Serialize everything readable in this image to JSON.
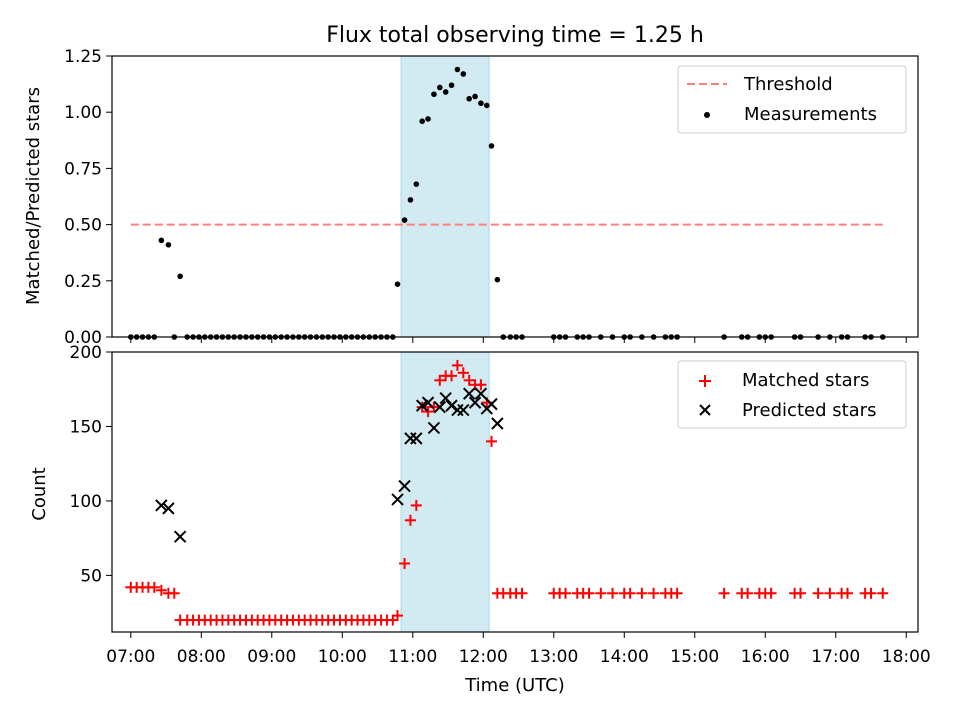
{
  "figure_title": "Flux total observing time = 1.25 h",
  "chart_data": [
    {
      "type": "scatter",
      "ylabel": "Matched/Predicted stars",
      "xlim": [
        "06:44",
        "18:10"
      ],
      "ylim": [
        0,
        1.25
      ],
      "yticks": [
        "0.00",
        "0.25",
        "0.50",
        "0.75",
        "1.00",
        "1.25"
      ],
      "highlight": {
        "from": "10:50",
        "to": "12:05",
        "color": "#add8e6"
      },
      "legend": [
        "Threshold",
        "Measurements"
      ],
      "legend_position": "top-right",
      "series": [
        {
          "name": "Threshold",
          "style": "dashed-line",
          "color": "#ff7f7f",
          "points": [
            [
              "07:00",
              0.5
            ],
            [
              "17:40",
              0.5
            ]
          ]
        },
        {
          "name": "Measurements",
          "style": "dot",
          "color": "#000000",
          "points": [
            [
              "07:00",
              0
            ],
            [
              "07:05",
              0
            ],
            [
              "07:10",
              0
            ],
            [
              "07:15",
              0
            ],
            [
              "07:20",
              0
            ],
            [
              "07:26",
              0.43
            ],
            [
              "07:32",
              0.41
            ],
            [
              "07:37",
              0
            ],
            [
              "07:42",
              0.27
            ],
            [
              "07:48",
              0
            ],
            [
              "07:53",
              0
            ],
            [
              "07:58",
              0
            ],
            [
              "08:03",
              0
            ],
            [
              "08:08",
              0
            ],
            [
              "08:13",
              0
            ],
            [
              "08:18",
              0
            ],
            [
              "08:23",
              0
            ],
            [
              "08:28",
              0
            ],
            [
              "08:33",
              0
            ],
            [
              "08:38",
              0
            ],
            [
              "08:43",
              0
            ],
            [
              "08:48",
              0
            ],
            [
              "08:53",
              0
            ],
            [
              "08:58",
              0
            ],
            [
              "09:03",
              0
            ],
            [
              "09:08",
              0
            ],
            [
              "09:13",
              0
            ],
            [
              "09:18",
              0
            ],
            [
              "09:23",
              0
            ],
            [
              "09:28",
              0
            ],
            [
              "09:33",
              0
            ],
            [
              "09:38",
              0
            ],
            [
              "09:43",
              0
            ],
            [
              "09:48",
              0
            ],
            [
              "09:53",
              0
            ],
            [
              "09:58",
              0
            ],
            [
              "10:03",
              0
            ],
            [
              "10:08",
              0
            ],
            [
              "10:13",
              0
            ],
            [
              "10:18",
              0
            ],
            [
              "10:23",
              0
            ],
            [
              "10:28",
              0
            ],
            [
              "10:33",
              0
            ],
            [
              "10:38",
              0
            ],
            [
              "10:43",
              0
            ],
            [
              "10:47",
              0.235
            ],
            [
              "10:53",
              0.52
            ],
            [
              "10:58",
              0.61
            ],
            [
              "11:03",
              0.68
            ],
            [
              "11:08",
              0.96
            ],
            [
              "11:13",
              0.97
            ],
            [
              "11:18",
              1.08
            ],
            [
              "11:23",
              1.11
            ],
            [
              "11:28",
              1.09
            ],
            [
              "11:33",
              1.12
            ],
            [
              "11:38",
              1.19
            ],
            [
              "11:43",
              1.17
            ],
            [
              "11:48",
              1.06
            ],
            [
              "11:53",
              1.07
            ],
            [
              "11:58",
              1.04
            ],
            [
              "12:03",
              1.03
            ],
            [
              "12:07",
              0.85
            ],
            [
              "12:12",
              0.255
            ],
            [
              "12:17",
              0
            ],
            [
              "12:23",
              0
            ],
            [
              "12:28",
              0
            ],
            [
              "12:33",
              0
            ],
            [
              "13:00",
              0
            ],
            [
              "13:05",
              0
            ],
            [
              "13:10",
              0
            ],
            [
              "13:20",
              0
            ],
            [
              "13:25",
              0
            ],
            [
              "13:30",
              0
            ],
            [
              "13:40",
              0
            ],
            [
              "13:50",
              0
            ],
            [
              "14:00",
              0
            ],
            [
              "14:05",
              0
            ],
            [
              "14:15",
              0
            ],
            [
              "14:25",
              0
            ],
            [
              "14:35",
              0
            ],
            [
              "14:40",
              0
            ],
            [
              "14:45",
              0
            ],
            [
              "15:25",
              0
            ],
            [
              "15:40",
              0
            ],
            [
              "15:45",
              0
            ],
            [
              "15:55",
              0
            ],
            [
              "16:00",
              0
            ],
            [
              "16:05",
              0
            ],
            [
              "16:25",
              0
            ],
            [
              "16:30",
              0
            ],
            [
              "16:45",
              0
            ],
            [
              "16:55",
              0
            ],
            [
              "17:05",
              0
            ],
            [
              "17:10",
              0
            ],
            [
              "17:25",
              0
            ],
            [
              "17:30",
              0
            ],
            [
              "17:40",
              0
            ]
          ]
        }
      ]
    },
    {
      "type": "scatter",
      "ylabel": "Count",
      "xlabel": "Time (UTC)",
      "xlim": [
        "06:44",
        "18:10"
      ],
      "ylim": [
        12,
        200
      ],
      "yticks": [
        "50",
        "100",
        "150",
        "200"
      ],
      "xticks": [
        "07:00",
        "08:00",
        "09:00",
        "10:00",
        "11:00",
        "12:00",
        "13:00",
        "14:00",
        "15:00",
        "16:00",
        "17:00",
        "18:00"
      ],
      "highlight": {
        "from": "10:50",
        "to": "12:05",
        "color": "#add8e6"
      },
      "legend": [
        "Matched stars",
        "Predicted stars"
      ],
      "legend_position": "top-right",
      "series": [
        {
          "name": "Matched stars",
          "marker": "plus",
          "color": "#ff0000",
          "points": [
            [
              "07:00",
              42
            ],
            [
              "07:05",
              42
            ],
            [
              "07:10",
              42
            ],
            [
              "07:15",
              42
            ],
            [
              "07:20",
              42
            ],
            [
              "07:26",
              40
            ],
            [
              "07:32",
              38
            ],
            [
              "07:37",
              38
            ],
            [
              "07:42",
              20
            ],
            [
              "07:48",
              20
            ],
            [
              "07:53",
              20
            ],
            [
              "07:58",
              20
            ],
            [
              "08:03",
              20
            ],
            [
              "08:08",
              20
            ],
            [
              "08:13",
              20
            ],
            [
              "08:18",
              20
            ],
            [
              "08:23",
              20
            ],
            [
              "08:28",
              20
            ],
            [
              "08:33",
              20
            ],
            [
              "08:38",
              20
            ],
            [
              "08:43",
              20
            ],
            [
              "08:48",
              20
            ],
            [
              "08:53",
              20
            ],
            [
              "08:58",
              20
            ],
            [
              "09:03",
              20
            ],
            [
              "09:08",
              20
            ],
            [
              "09:13",
              20
            ],
            [
              "09:18",
              20
            ],
            [
              "09:23",
              20
            ],
            [
              "09:28",
              20
            ],
            [
              "09:33",
              20
            ],
            [
              "09:38",
              20
            ],
            [
              "09:43",
              20
            ],
            [
              "09:48",
              20
            ],
            [
              "09:53",
              20
            ],
            [
              "09:58",
              20
            ],
            [
              "10:03",
              20
            ],
            [
              "10:08",
              20
            ],
            [
              "10:13",
              20
            ],
            [
              "10:18",
              20
            ],
            [
              "10:23",
              20
            ],
            [
              "10:28",
              20
            ],
            [
              "10:33",
              20
            ],
            [
              "10:38",
              20
            ],
            [
              "10:43",
              20
            ],
            [
              "10:47",
              23
            ],
            [
              "10:53",
              58
            ],
            [
              "10:58",
              87
            ],
            [
              "11:03",
              97
            ],
            [
              "11:08",
              163
            ],
            [
              "11:13",
              160
            ],
            [
              "11:18",
              163
            ],
            [
              "11:23",
              181
            ],
            [
              "11:28",
              184
            ],
            [
              "11:33",
              184
            ],
            [
              "11:38",
              191
            ],
            [
              "11:43",
              186
            ],
            [
              "11:48",
              181
            ],
            [
              "11:53",
              178
            ],
            [
              "11:58",
              178
            ],
            [
              "12:03",
              166
            ],
            [
              "12:07",
              140
            ],
            [
              "12:12",
              38
            ],
            [
              "12:17",
              38
            ],
            [
              "12:23",
              38
            ],
            [
              "12:28",
              38
            ],
            [
              "12:33",
              38
            ],
            [
              "13:00",
              38
            ],
            [
              "13:05",
              38
            ],
            [
              "13:10",
              38
            ],
            [
              "13:20",
              38
            ],
            [
              "13:25",
              38
            ],
            [
              "13:30",
              38
            ],
            [
              "13:40",
              38
            ],
            [
              "13:50",
              38
            ],
            [
              "14:00",
              38
            ],
            [
              "14:05",
              38
            ],
            [
              "14:15",
              38
            ],
            [
              "14:25",
              38
            ],
            [
              "14:35",
              38
            ],
            [
              "14:40",
              38
            ],
            [
              "14:45",
              38
            ],
            [
              "15:25",
              38
            ],
            [
              "15:40",
              38
            ],
            [
              "15:45",
              38
            ],
            [
              "15:55",
              38
            ],
            [
              "16:00",
              38
            ],
            [
              "16:05",
              38
            ],
            [
              "16:25",
              38
            ],
            [
              "16:30",
              38
            ],
            [
              "16:45",
              38
            ],
            [
              "16:55",
              38
            ],
            [
              "17:05",
              38
            ],
            [
              "17:10",
              38
            ],
            [
              "17:25",
              38
            ],
            [
              "17:30",
              38
            ],
            [
              "17:40",
              38
            ]
          ]
        },
        {
          "name": "Predicted stars",
          "marker": "x",
          "color": "#000000",
          "points": [
            [
              "07:26",
              97
            ],
            [
              "07:32",
              95
            ],
            [
              "07:42",
              76
            ],
            [
              "10:47",
              101
            ],
            [
              "10:53",
              110
            ],
            [
              "10:58",
              142
            ],
            [
              "11:03",
              142
            ],
            [
              "11:08",
              164
            ],
            [
              "11:13",
              166
            ],
            [
              "11:18",
              149
            ],
            [
              "11:23",
              163
            ],
            [
              "11:28",
              169
            ],
            [
              "11:33",
              164
            ],
            [
              "11:38",
              161
            ],
            [
              "11:43",
              161
            ],
            [
              "11:48",
              172
            ],
            [
              "11:53",
              166
            ],
            [
              "11:58",
              172
            ],
            [
              "12:03",
              162
            ],
            [
              "12:07",
              165
            ],
            [
              "12:12",
              152
            ]
          ]
        }
      ]
    }
  ]
}
